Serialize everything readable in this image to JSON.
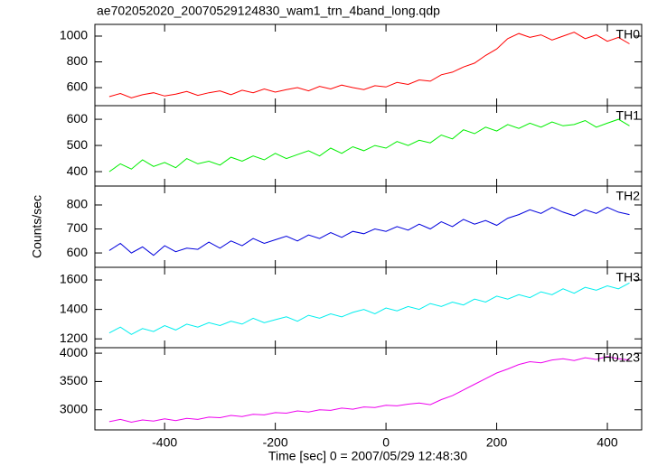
{
  "chart_data": {
    "type": "line",
    "title": "ae702052020_20070529124830_wam1_trn_4band_long.qdp",
    "xlabel": "Time [sec] 0 = 2007/05/29 12:48:30",
    "ylabel": "Counts/sec",
    "xlim": [
      -526,
      462
    ],
    "xticks": [
      -400,
      -200,
      0,
      200,
      400
    ],
    "x": [
      -500,
      -480,
      -460,
      -440,
      -420,
      -400,
      -380,
      -360,
      -340,
      -320,
      -300,
      -280,
      -260,
      -240,
      -220,
      -200,
      -180,
      -160,
      -140,
      -120,
      -100,
      -80,
      -60,
      -40,
      -20,
      0,
      20,
      40,
      60,
      80,
      100,
      120,
      140,
      160,
      180,
      200,
      220,
      240,
      260,
      280,
      300,
      320,
      340,
      360,
      380,
      400,
      420,
      440
    ],
    "series": [
      {
        "name": "TH0",
        "color": "#ff0000",
        "ylim": [
          460,
          1091
        ],
        "yticks": [
          600,
          800,
          1000
        ],
        "values": [
          530,
          555,
          520,
          545,
          560,
          535,
          550,
          570,
          540,
          560,
          575,
          545,
          580,
          560,
          590,
          565,
          585,
          600,
          575,
          610,
          590,
          620,
          600,
          585,
          615,
          605,
          640,
          625,
          660,
          650,
          700,
          720,
          760,
          790,
          850,
          900,
          980,
          1020,
          990,
          1010,
          970,
          1000,
          1030,
          980,
          1010,
          960,
          990,
          940
        ]
      },
      {
        "name": "TH1",
        "color": "#00ee00",
        "ylim": [
          345,
          652
        ],
        "yticks": [
          400,
          500,
          600
        ],
        "values": [
          400,
          430,
          410,
          445,
          420,
          435,
          415,
          450,
          430,
          440,
          425,
          455,
          440,
          460,
          445,
          470,
          450,
          465,
          480,
          460,
          490,
          470,
          495,
          480,
          500,
          490,
          515,
          500,
          520,
          510,
          540,
          525,
          560,
          545,
          570,
          555,
          580,
          565,
          585,
          570,
          590,
          575,
          580,
          595,
          570,
          585,
          600,
          575
        ]
      },
      {
        "name": "TH2",
        "color": "#0000dd",
        "ylim": [
          540,
          879
        ],
        "yticks": [
          600,
          700,
          800
        ],
        "values": [
          610,
          640,
          600,
          625,
          590,
          630,
          605,
          620,
          615,
          645,
          620,
          650,
          630,
          660,
          640,
          655,
          670,
          650,
          675,
          660,
          685,
          665,
          690,
          680,
          700,
          690,
          710,
          695,
          720,
          700,
          730,
          710,
          740,
          720,
          735,
          715,
          745,
          760,
          780,
          765,
          790,
          770,
          755,
          780,
          765,
          790,
          770,
          760
        ]
      },
      {
        "name": "TH3",
        "color": "#00eeee",
        "ylim": [
          1140,
          1686
        ],
        "yticks": [
          1200,
          1400,
          1600
        ],
        "values": [
          1240,
          1280,
          1230,
          1270,
          1250,
          1290,
          1260,
          1300,
          1280,
          1310,
          1290,
          1320,
          1300,
          1340,
          1310,
          1330,
          1350,
          1320,
          1360,
          1340,
          1370,
          1350,
          1380,
          1400,
          1370,
          1410,
          1390,
          1420,
          1400,
          1440,
          1420,
          1450,
          1430,
          1470,
          1450,
          1490,
          1470,
          1500,
          1480,
          1520,
          1500,
          1540,
          1510,
          1550,
          1530,
          1560,
          1540,
          1580
        ]
      },
      {
        "name": "TH0123",
        "color": "#ee00ee",
        "ylim": [
          2645,
          4097
        ],
        "yticks": [
          3000,
          3500,
          4000
        ],
        "values": [
          2790,
          2830,
          2780,
          2820,
          2800,
          2840,
          2810,
          2850,
          2830,
          2870,
          2860,
          2900,
          2880,
          2920,
          2910,
          2950,
          2940,
          2980,
          2960,
          3000,
          2990,
          3030,
          3010,
          3050,
          3040,
          3080,
          3070,
          3100,
          3120,
          3090,
          3180,
          3250,
          3350,
          3450,
          3550,
          3650,
          3720,
          3800,
          3850,
          3830,
          3880,
          3900,
          3870,
          3920,
          3890,
          3940,
          3900,
          3880
        ]
      }
    ]
  }
}
